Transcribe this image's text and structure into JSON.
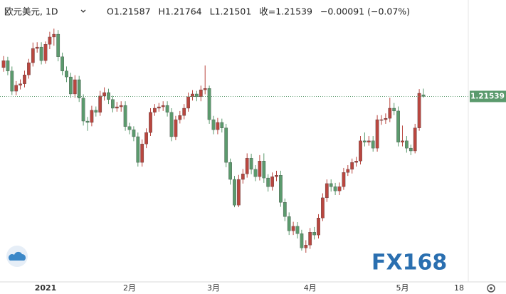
{
  "chart_data": {
    "type": "candlestick",
    "symbol": "欧元美元, 1D",
    "ohlc_labels": [
      "O1.21587",
      "H1.21764",
      "L1.21501",
      "收=1.21539",
      "−0.00091 (−0.07%)"
    ],
    "categories": [
      null,
      null,
      null,
      null,
      null,
      null,
      null,
      null,
      null,
      null,
      "2021",
      null,
      null,
      null,
      null,
      null,
      null,
      null,
      null,
      null,
      null,
      null,
      null,
      null,
      null,
      null,
      null,
      null,
      null,
      null,
      "2月",
      null,
      null,
      null,
      null,
      null,
      null,
      null,
      null,
      null,
      null,
      null,
      null,
      null,
      null,
      null,
      null,
      null,
      null,
      null,
      "3月",
      null,
      null,
      null,
      null,
      null,
      null,
      null,
      null,
      null,
      null,
      null,
      null,
      null,
      null,
      null,
      null,
      null,
      null,
      null,
      null,
      null,
      null,
      "4月",
      null,
      null,
      null,
      null,
      null,
      null,
      null,
      null,
      null,
      null,
      null,
      null,
      null,
      null,
      null,
      null,
      null,
      null,
      null,
      null,
      null,
      "5月",
      null,
      null,
      null,
      null,
      null
    ],
    "x_axis_end_label": "18",
    "open": [
      1.2237,
      1.2257,
      1.2227,
      1.2169,
      1.2186,
      1.219,
      1.2216,
      1.2251,
      1.2292,
      1.2296,
      1.2257,
      1.2304,
      1.2325,
      1.2333,
      1.2268,
      1.2227,
      1.221,
      1.2161,
      1.2202,
      1.2149,
      1.2083,
      1.2079,
      1.2114,
      1.2108,
      1.2155,
      1.2165,
      1.2145,
      1.212,
      1.2124,
      1.2128,
      1.2067,
      1.2058,
      1.2038,
      1.1964,
      1.2017,
      1.205,
      1.2108,
      1.212,
      1.2124,
      1.2128,
      1.2108,
      1.2038,
      1.2087,
      1.2099,
      1.212,
      1.2153,
      1.2161,
      1.2153,
      1.2173,
      1.2177,
      1.2087,
      1.2058,
      1.2079,
      1.2063,
      1.1964,
      1.1915,
      1.1841,
      1.1915,
      1.1931,
      1.1976,
      1.1944,
      1.1923,
      1.1968,
      1.1919,
      1.1894,
      1.1923,
      1.1927,
      1.1849,
      1.1808,
      1.1767,
      1.178,
      1.1759,
      1.1718,
      1.1726,
      1.1763,
      1.1755,
      1.1804,
      1.1862,
      1.1903,
      1.1894,
      1.1882,
      1.1894,
      1.1935,
      1.1944,
      1.1964,
      1.1968,
      1.2026,
      1.2022,
      1.2026,
      1.2005,
      1.2087,
      1.2087,
      1.2091,
      1.212,
      1.2112,
      1.2022,
      1.2026,
      1.2005,
      1.1997,
      1.2063,
      1.21587
    ],
    "high": [
      1.227,
      1.2268,
      1.224,
      1.2198,
      1.2203,
      1.2228,
      1.2262,
      1.2309,
      1.231,
      1.231,
      1.2312,
      1.234,
      1.2349,
      1.2345,
      1.228,
      1.224,
      1.2222,
      1.2215,
      1.2213,
      1.216,
      1.2095,
      1.2127,
      1.2125,
      1.217,
      1.218,
      1.2176,
      1.2156,
      1.2138,
      1.214,
      1.214,
      1.2078,
      1.2068,
      1.205,
      1.203,
      1.2062,
      1.212,
      1.2132,
      1.2135,
      1.214,
      1.214,
      1.212,
      1.2098,
      1.2112,
      1.2132,
      1.2165,
      1.2172,
      1.217,
      1.2185,
      1.2243,
      1.2185,
      1.2098,
      1.2092,
      1.209,
      1.2075,
      1.1975,
      1.1925,
      1.1928,
      1.1945,
      1.199,
      1.1989,
      1.1956,
      1.1985,
      1.199,
      1.193,
      1.1935,
      1.194,
      1.194,
      1.186,
      1.182,
      1.1793,
      1.1792,
      1.177,
      1.174,
      1.1775,
      1.1778,
      1.1815,
      1.1875,
      1.1915,
      1.1915,
      1.1905,
      1.1906,
      1.1948,
      1.1956,
      1.1975,
      1.198,
      1.204,
      1.205,
      1.204,
      1.204,
      1.21,
      1.21,
      1.2105,
      1.215,
      1.2135,
      1.2125,
      1.207,
      1.204,
      1.2015,
      1.2075,
      1.2175,
      1.21764
    ],
    "low": [
      1.2225,
      1.2215,
      1.2158,
      1.2157,
      1.2174,
      1.218,
      1.2205,
      1.224,
      1.228,
      1.2246,
      1.2248,
      1.229,
      1.23,
      1.2255,
      1.2215,
      1.2195,
      1.215,
      1.215,
      1.2138,
      1.207,
      1.2055,
      1.2068,
      1.2096,
      1.2098,
      1.2142,
      1.2132,
      1.2108,
      1.211,
      1.211,
      1.2055,
      1.2045,
      1.2025,
      1.1952,
      1.1952,
      1.2005,
      1.204,
      1.2098,
      1.211,
      1.2112,
      1.2096,
      1.2025,
      1.2028,
      1.2076,
      1.2088,
      1.211,
      1.2142,
      1.214,
      1.214,
      1.216,
      1.2075,
      1.2045,
      1.2045,
      1.205,
      1.195,
      1.19,
      1.1835,
      1.1835,
      1.1903,
      1.192,
      1.193,
      1.191,
      1.1912,
      1.1905,
      1.188,
      1.1883,
      1.191,
      1.1836,
      1.1795,
      1.1755,
      1.1755,
      1.1745,
      1.171,
      1.1704,
      1.1715,
      1.1742,
      1.1745,
      1.1795,
      1.185,
      1.188,
      1.187,
      1.187,
      1.1885,
      1.1925,
      1.1932,
      1.1952,
      1.1958,
      1.201,
      1.2012,
      1.1995,
      1.1995,
      1.2072,
      1.2075,
      1.208,
      1.21,
      1.201,
      1.201,
      1.1992,
      1.1985,
      1.199,
      1.2055,
      1.21501
    ],
    "close": [
      1.2257,
      1.2227,
      1.2169,
      1.2186,
      1.219,
      1.2216,
      1.2251,
      1.2292,
      1.2296,
      1.2257,
      1.2304,
      1.2325,
      1.2333,
      1.2268,
      1.2227,
      1.221,
      1.2161,
      1.2202,
      1.2149,
      1.2083,
      1.2079,
      1.2114,
      1.2108,
      1.2155,
      1.2165,
      1.2145,
      1.212,
      1.2124,
      1.2128,
      1.2067,
      1.2058,
      1.2038,
      1.1964,
      1.2017,
      1.205,
      1.2108,
      1.212,
      1.2124,
      1.2128,
      1.2108,
      1.2038,
      1.2087,
      1.2099,
      1.212,
      1.2153,
      1.2161,
      1.2153,
      1.2173,
      1.2177,
      1.2087,
      1.2058,
      1.2079,
      1.2063,
      1.1964,
      1.1915,
      1.1841,
      1.1915,
      1.1931,
      1.1976,
      1.1944,
      1.1923,
      1.1968,
      1.1919,
      1.1894,
      1.1923,
      1.1927,
      1.1849,
      1.1808,
      1.1767,
      1.178,
      1.1759,
      1.1718,
      1.1726,
      1.1763,
      1.1755,
      1.1804,
      1.1862,
      1.1903,
      1.1894,
      1.1882,
      1.1894,
      1.1935,
      1.1944,
      1.1964,
      1.1968,
      1.2026,
      1.2022,
      1.2026,
      1.2005,
      1.2087,
      1.2087,
      1.2091,
      1.212,
      1.2112,
      1.2022,
      1.2026,
      1.2005,
      1.1997,
      1.2063,
      1.2163,
      1.21539
    ],
    "up_color": "#b9463f",
    "down_color": "#5b9a6d",
    "last_price": 1.21539,
    "last_price_color": "#5b9a6d",
    "ylim": [
      1.1622,
      1.237
    ],
    "watermark": "FX168"
  }
}
